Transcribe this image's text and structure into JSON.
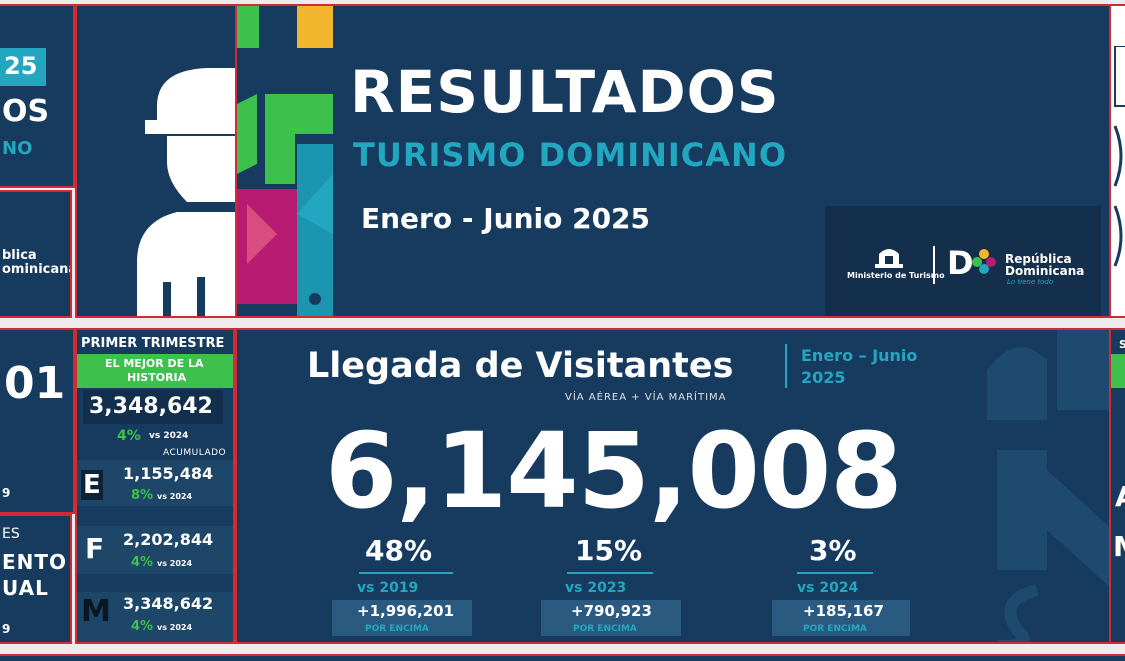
{
  "colors": {
    "navy": "#163b5e",
    "teal": "#23a7c1",
    "green": "#3ec04d",
    "frame_red": "#d42a36",
    "yellow": "#f4b52e",
    "magenta": "#b81b72"
  },
  "left_top": {
    "year_badge": "25",
    "word_fragment": "OS",
    "sub_fragment": "NO"
  },
  "left_logo": {
    "line1": "blica",
    "line2": "ominicana"
  },
  "hero": {
    "title": "RESULTADOS",
    "subtitle": "TURISMO DOMINICANO",
    "period": "Enero - Junio 2025",
    "ministry_label": "Ministerio de Turismo",
    "brand_mark": "D",
    "brand_line1": "República",
    "brand_line2": "Dominicana",
    "brand_tagline": "Lo tiene todo"
  },
  "left_bottom": {
    "big_fragment": "01",
    "small_num": "9",
    "label_es": "ES",
    "label_ento": "ENTO",
    "label_ual": "UAL",
    "small_num2": "9"
  },
  "trimester": {
    "header": "PRIMER TRIMESTRE",
    "banner_line1": "EL MEJOR DE LA",
    "banner_line2": "HISTORIA",
    "total": "3,348,642",
    "total_pct": "4%",
    "total_vs": "vs 2024",
    "acum": "ACUMULADO",
    "months": [
      {
        "letter": "E",
        "value": "1,155,484",
        "pct": "8%",
        "vs": "vs 2024"
      },
      {
        "letter": "F",
        "value": "2,202,844",
        "pct": "4%",
        "vs": "vs 2024"
      },
      {
        "letter": "M",
        "value": "3,348,642",
        "pct": "4%",
        "vs": "vs 2024"
      }
    ]
  },
  "arrivals": {
    "title": "Llegada de Visitantes",
    "period_line1": "Enero – Junio",
    "period_line2": "2025",
    "sub": "VÍA AÉREA + VÍA MARÍTIMA",
    "total": "6,145,008",
    "stats": [
      {
        "pct": "48%",
        "vs": "vs 2019",
        "delta": "+1,996,201",
        "note": "POR ENCIMA"
      },
      {
        "pct": "15%",
        "vs": "vs 2023",
        "delta": "+790,923",
        "note": "POR ENCIMA"
      },
      {
        "pct": "3%",
        "vs": "vs 2024",
        "delta": "+185,167",
        "note": "POR ENCIMA"
      }
    ]
  },
  "right_edge": {
    "frag1": "S",
    "frag2": "A",
    "frag3": "M"
  }
}
